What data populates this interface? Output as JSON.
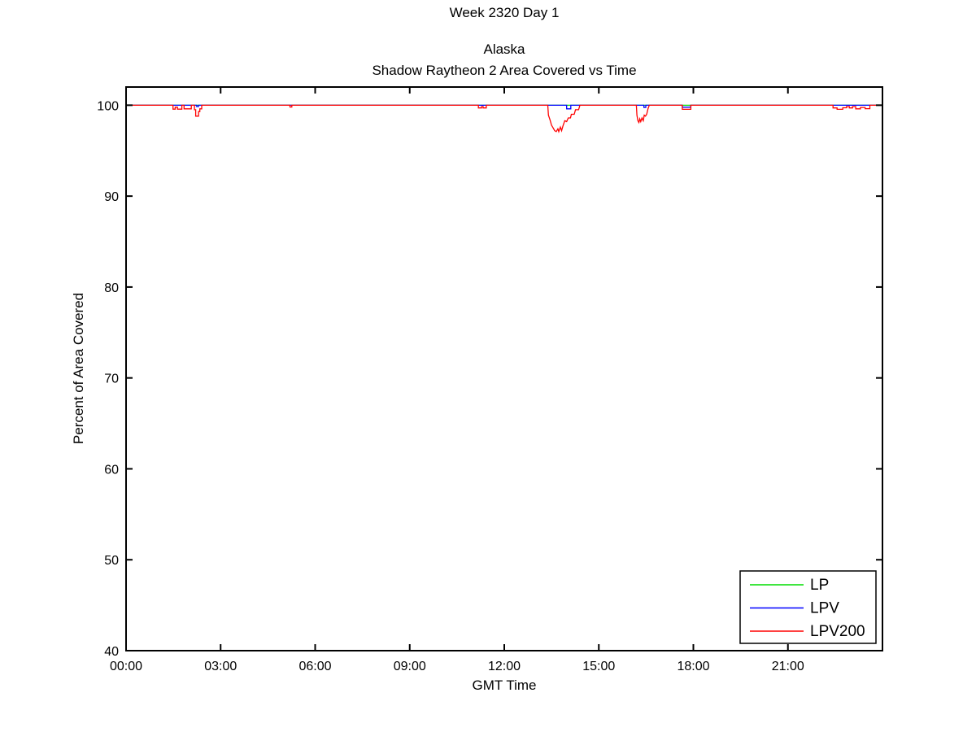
{
  "chart_data": {
    "type": "line",
    "title": "Week 2320 Day 1",
    "subtitle": [
      "Alaska",
      "Shadow Raytheon 2 Area Covered vs Time"
    ],
    "xlabel": "GMT Time",
    "ylabel": "Percent of Area Covered",
    "xlim_hours": [
      0,
      24
    ],
    "ylim": [
      40,
      102
    ],
    "grid": false,
    "axis_color": "#000000",
    "x_ticks": [
      {
        "hour": 0,
        "label": "00:00"
      },
      {
        "hour": 3,
        "label": "03:00"
      },
      {
        "hour": 6,
        "label": "06:00"
      },
      {
        "hour": 9,
        "label": "09:00"
      },
      {
        "hour": 12,
        "label": "12:00"
      },
      {
        "hour": 15,
        "label": "15:00"
      },
      {
        "hour": 18,
        "label": "18:00"
      },
      {
        "hour": 21,
        "label": "21:00"
      }
    ],
    "y_ticks": [
      40,
      50,
      60,
      70,
      80,
      90,
      100
    ],
    "legend": {
      "position": "bottom-right-inside",
      "entries": [
        {
          "name": "LP",
          "color": "#00dd00"
        },
        {
          "name": "LPV",
          "color": "#0000ff"
        },
        {
          "name": "LPV200",
          "color": "#ff0000"
        }
      ]
    },
    "series": [
      {
        "name": "LP",
        "color": "#00dd00",
        "points": [
          [
            0,
            100
          ],
          [
            24,
            100
          ]
        ]
      },
      {
        "name": "LPV",
        "color": "#0000ff",
        "points": [
          [
            0,
            100
          ],
          [
            2.24,
            100
          ],
          [
            2.24,
            99.85
          ],
          [
            2.3,
            99.85
          ],
          [
            2.3,
            100
          ],
          [
            13.98,
            100
          ],
          [
            13.98,
            99.6
          ],
          [
            14.11,
            99.6
          ],
          [
            14.11,
            100
          ],
          [
            16.43,
            100
          ],
          [
            16.43,
            99.75
          ],
          [
            16.49,
            99.75
          ],
          [
            16.49,
            100
          ],
          [
            17.65,
            100
          ],
          [
            17.65,
            99.78
          ],
          [
            17.92,
            99.78
          ],
          [
            17.92,
            100
          ],
          [
            24,
            100
          ]
        ]
      },
      {
        "name": "LPV200",
        "color": "#ff0000",
        "points": [
          [
            0,
            100
          ],
          [
            1.49,
            100
          ],
          [
            1.49,
            99.57
          ],
          [
            1.56,
            99.57
          ],
          [
            1.56,
            99.78
          ],
          [
            1.63,
            99.78
          ],
          [
            1.63,
            99.57
          ],
          [
            1.77,
            99.57
          ],
          [
            1.77,
            100
          ],
          [
            1.84,
            100
          ],
          [
            1.84,
            99.6
          ],
          [
            2.07,
            99.6
          ],
          [
            2.07,
            100
          ],
          [
            2.17,
            100
          ],
          [
            2.17,
            99.5
          ],
          [
            2.21,
            99.5
          ],
          [
            2.21,
            98.8
          ],
          [
            2.3,
            98.8
          ],
          [
            2.3,
            99.3
          ],
          [
            2.34,
            99.3
          ],
          [
            2.34,
            99.6
          ],
          [
            2.4,
            99.6
          ],
          [
            2.4,
            100
          ],
          [
            5.2,
            100
          ],
          [
            5.2,
            99.8
          ],
          [
            5.26,
            99.8
          ],
          [
            5.26,
            100
          ],
          [
            11.18,
            100
          ],
          [
            11.18,
            99.7
          ],
          [
            11.28,
            99.7
          ],
          [
            11.28,
            99.85
          ],
          [
            11.33,
            99.85
          ],
          [
            11.33,
            99.7
          ],
          [
            11.43,
            99.7
          ],
          [
            11.43,
            100
          ],
          [
            13.38,
            100
          ],
          [
            13.4,
            98.9
          ],
          [
            13.45,
            98.4
          ],
          [
            13.5,
            97.8
          ],
          [
            13.55,
            97.5
          ],
          [
            13.6,
            97.2
          ],
          [
            13.65,
            97.1
          ],
          [
            13.7,
            97.4
          ],
          [
            13.73,
            97.1
          ],
          [
            13.78,
            97.6
          ],
          [
            13.82,
            97.2
          ],
          [
            13.86,
            97.7
          ],
          [
            13.92,
            98.3
          ],
          [
            13.98,
            98.2
          ],
          [
            14.03,
            98.6
          ],
          [
            14.1,
            98.6
          ],
          [
            14.13,
            99.0
          ],
          [
            14.22,
            99.0
          ],
          [
            14.26,
            99.5
          ],
          [
            14.36,
            99.5
          ],
          [
            14.4,
            100
          ],
          [
            16.19,
            100
          ],
          [
            16.21,
            98.9
          ],
          [
            16.24,
            98.3
          ],
          [
            16.27,
            98.1
          ],
          [
            16.3,
            98.5
          ],
          [
            16.33,
            98.2
          ],
          [
            16.37,
            98.6
          ],
          [
            16.41,
            98.3
          ],
          [
            16.44,
            98.9
          ],
          [
            16.48,
            98.8
          ],
          [
            16.52,
            99.0
          ],
          [
            16.56,
            99.6
          ],
          [
            16.6,
            100
          ],
          [
            17.65,
            100
          ],
          [
            17.65,
            99.55
          ],
          [
            17.92,
            99.55
          ],
          [
            17.92,
            100
          ],
          [
            22.43,
            100
          ],
          [
            22.43,
            99.7
          ],
          [
            22.56,
            99.7
          ],
          [
            22.56,
            99.55
          ],
          [
            22.74,
            99.55
          ],
          [
            22.74,
            99.72
          ],
          [
            22.86,
            99.72
          ],
          [
            22.86,
            99.85
          ],
          [
            22.95,
            99.85
          ],
          [
            22.95,
            99.7
          ],
          [
            23.05,
            99.7
          ],
          [
            23.05,
            99.85
          ],
          [
            23.15,
            99.85
          ],
          [
            23.15,
            99.6
          ],
          [
            23.3,
            99.6
          ],
          [
            23.3,
            99.75
          ],
          [
            23.45,
            99.75
          ],
          [
            23.45,
            99.62
          ],
          [
            23.6,
            99.62
          ],
          [
            23.6,
            100
          ],
          [
            24,
            100
          ]
        ]
      }
    ]
  }
}
